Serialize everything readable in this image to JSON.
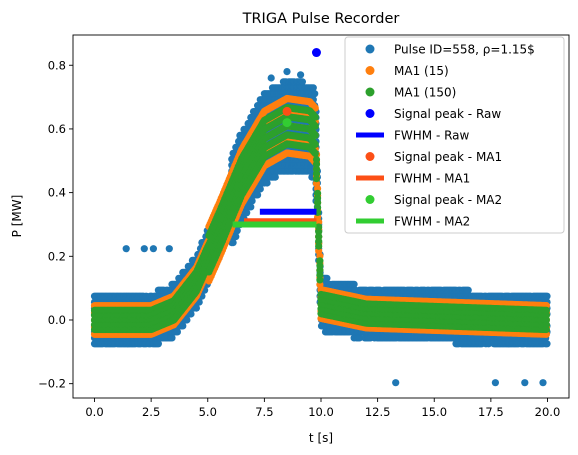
{
  "chart_data": {
    "type": "scatter",
    "title": "TRIGA Pulse Recorder",
    "xlabel": "t [s]",
    "ylabel": "P [MW]",
    "xlim": [
      -0.95,
      20.95
    ],
    "ylim": [
      -0.245,
      0.895
    ],
    "xticks": [
      0.0,
      2.5,
      5.0,
      7.5,
      10.0,
      12.5,
      15.0,
      17.5,
      20.0
    ],
    "xtick_labels": [
      "0.0",
      "2.5",
      "5.0",
      "7.5",
      "10.0",
      "12.5",
      "15.0",
      "17.5",
      "20.0"
    ],
    "yticks": [
      -0.2,
      0.0,
      0.2,
      0.4,
      0.6,
      0.8
    ],
    "ytick_labels": [
      "−0.2",
      "0.0",
      "0.2",
      "0.4",
      "0.6",
      "0.8"
    ],
    "grid": false,
    "legend_position": "top-right",
    "raw_signal": {
      "name": "Pulse ID=558, ρ=1.15$",
      "color": "#1f77b4",
      "quantization_step": 0.0187,
      "noise_band": 0.085,
      "shape": [
        {
          "t": 0.0,
          "p": 0.0
        },
        {
          "t": 2.5,
          "p": 0.0
        },
        {
          "t": 3.5,
          "p": 0.03
        },
        {
          "t": 4.5,
          "p": 0.12
        },
        {
          "t": 5.5,
          "p": 0.28
        },
        {
          "t": 6.5,
          "p": 0.45
        },
        {
          "t": 7.5,
          "p": 0.57
        },
        {
          "t": 8.5,
          "p": 0.61
        },
        {
          "t": 9.5,
          "p": 0.6
        },
        {
          "t": 9.75,
          "p": 0.58
        },
        {
          "t": 10.0,
          "p": 0.05
        },
        {
          "t": 12.0,
          "p": 0.02
        },
        {
          "t": 20.0,
          "p": 0.0
        }
      ],
      "outliers": [
        {
          "t": 1.4,
          "p": 0.224
        },
        {
          "t": 2.2,
          "p": 0.224
        },
        {
          "t": 2.6,
          "p": 0.224
        },
        {
          "t": 3.3,
          "p": 0.224
        },
        {
          "t": 13.3,
          "p": -0.197
        },
        {
          "t": 17.7,
          "p": -0.197
        },
        {
          "t": 19.0,
          "p": -0.197
        },
        {
          "t": 19.8,
          "p": -0.197
        },
        {
          "t": 8.5,
          "p": 0.78
        },
        {
          "t": 7.8,
          "p": 0.76
        },
        {
          "t": 9.1,
          "p": 0.77
        }
      ]
    },
    "ma1": {
      "name": "MA1 (15)",
      "color": "#ff7f0e",
      "band": 0.045
    },
    "ma2": {
      "name": "MA1 (150)",
      "color": "#2ca02c",
      "band": 0.03
    },
    "peaks": {
      "raw": {
        "name": "Signal peak - Raw",
        "color": "#0000ff",
        "t": 9.8,
        "p": 0.84
      },
      "ma1": {
        "name": "Signal peak - MA1",
        "color": "#fc4f16",
        "t": 8.5,
        "p": 0.655
      },
      "ma2": {
        "name": "Signal peak - MA2",
        "color": "#32cd32",
        "t": 8.5,
        "p": 0.62
      }
    },
    "fwhm": {
      "raw": {
        "name": "FWHM - Raw",
        "color": "#0000ff",
        "t_start": 7.3,
        "t_end": 9.8,
        "p": 0.34
      },
      "ma1": {
        "name": "FWHM - MA1",
        "color": "#fc4f16",
        "t_start": 6.6,
        "t_end": 9.8,
        "p": 0.31
      },
      "ma2": {
        "name": "FWHM - MA2",
        "color": "#32cd32",
        "t_start": 6.1,
        "t_end": 9.8,
        "p": 0.3
      }
    },
    "legend": [
      {
        "label": "Pulse ID=558, ρ=1.15$",
        "kind": "dot",
        "color": "#1f77b4"
      },
      {
        "label": "MA1 (15)",
        "kind": "dot",
        "color": "#ff7f0e"
      },
      {
        "label": "MA1 (150)",
        "kind": "dot",
        "color": "#2ca02c"
      },
      {
        "label": "Signal peak - Raw",
        "kind": "dot",
        "color": "#0000ff"
      },
      {
        "label": "FWHM - Raw",
        "kind": "line",
        "color": "#0000ff"
      },
      {
        "label": "Signal peak - MA1",
        "kind": "dot",
        "color": "#fc4f16"
      },
      {
        "label": "FWHM - MA1",
        "kind": "line",
        "color": "#fc4f16"
      },
      {
        "label": "Signal peak - MA2",
        "kind": "dot",
        "color": "#32cd32"
      },
      {
        "label": "FWHM - MA2",
        "kind": "line",
        "color": "#32cd32"
      }
    ]
  }
}
